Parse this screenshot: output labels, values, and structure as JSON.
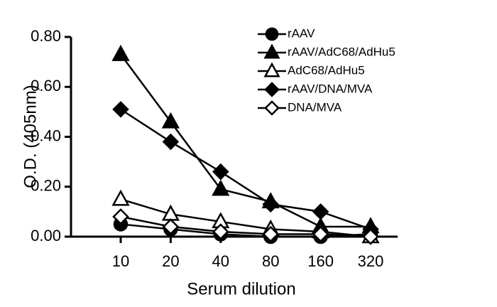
{
  "chart_data": {
    "type": "line",
    "xlabel": "Serum dilution",
    "ylabel": "O.D. (405nm)",
    "categories": [
      "10",
      "20",
      "40",
      "80",
      "160",
      "320"
    ],
    "ylim": [
      0,
      0.8
    ],
    "yticks": [
      {
        "value": 0,
        "label": "0.00"
      },
      {
        "value": 0.2,
        "label": "0.20"
      },
      {
        "value": 0.4,
        "label": "0.40"
      },
      {
        "value": 0.6,
        "label": "0.60"
      },
      {
        "value": 0.8,
        "label": "0.80"
      }
    ],
    "legend_position": "upper right",
    "series": [
      {
        "name": "rAAV",
        "color": "#000000",
        "marker": "circle",
        "filled": true,
        "values": [
          0.05,
          0.03,
          0.01,
          0.0,
          0.0,
          0.01
        ]
      },
      {
        "name": "rAAV/AdC68/AdHu5",
        "color": "#000000",
        "marker": "triangle",
        "filled": true,
        "values": [
          0.73,
          0.46,
          0.19,
          0.14,
          0.04,
          0.04
        ]
      },
      {
        "name": "AdC68/AdHu5",
        "color": "#000000",
        "marker": "triangle",
        "filled": false,
        "values": [
          0.15,
          0.09,
          0.06,
          0.03,
          0.02,
          0.0
        ]
      },
      {
        "name": "rAAV/DNA/MVA",
        "color": "#000000",
        "marker": "diamond",
        "filled": true,
        "values": [
          0.51,
          0.38,
          0.26,
          0.13,
          0.1,
          0.03
        ]
      },
      {
        "name": "DNA/MVA",
        "color": "#000000",
        "marker": "diamond",
        "filled": false,
        "values": [
          0.08,
          0.04,
          0.02,
          0.01,
          0.01,
          0.0
        ]
      }
    ]
  }
}
